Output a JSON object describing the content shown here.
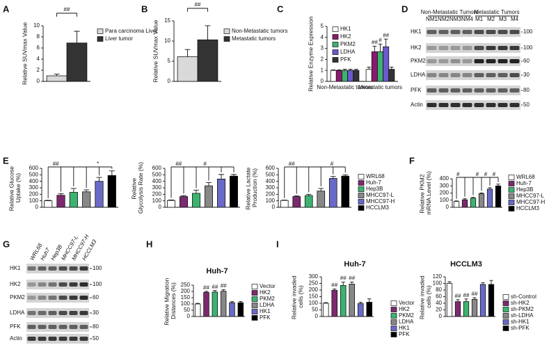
{
  "panel_labels": [
    "A",
    "B",
    "C",
    "D",
    "E",
    "F",
    "G",
    "H",
    "I"
  ],
  "chart_data": [
    {
      "type": "bar",
      "ylabel": "Relative SUVmax Value",
      "ylim": [
        0,
        10
      ],
      "yticks": [
        0,
        2,
        4,
        6,
        8,
        10
      ],
      "series": [
        {
          "name": "Para carcinoma Liver",
          "color": "#d9d9d9",
          "values": [
            1.0
          ],
          "errors": [
            0.3
          ]
        },
        {
          "name": "Liver tumor",
          "color": "#333333",
          "values": [
            6.9
          ],
          "errors": [
            2.1
          ]
        }
      ],
      "annotations": [
        "##"
      ]
    },
    {
      "type": "bar",
      "ylabel": "Relative SUVmax Value",
      "ylim": [
        0,
        15
      ],
      "yticks": [
        0,
        5,
        10,
        15
      ],
      "series": [
        {
          "name": "Non-Metastatic tumors",
          "color": "#d9d9d9",
          "values": [
            6.1
          ],
          "errors": [
            1.8
          ]
        },
        {
          "name": "Metastatic tumors",
          "color": "#333333",
          "values": [
            10.3
          ],
          "errors": [
            3.5
          ]
        }
      ],
      "annotations": [
        "##"
      ]
    },
    {
      "type": "bar",
      "ylabel": "Relative Enzyme Expression",
      "ylim": [
        0,
        5
      ],
      "yticks": [
        0,
        1,
        2,
        3,
        4,
        5
      ],
      "categories": [
        "Non-Metastatic tumors",
        "Metastatic tumors"
      ],
      "series": [
        {
          "name": "HK1",
          "color": "#ffffff",
          "values": [
            1.0,
            1.1
          ],
          "errors": [
            0.05,
            0.2
          ]
        },
        {
          "name": "HK2",
          "color": "#8b1a6b",
          "values": [
            1.0,
            2.7
          ],
          "errors": [
            0.05,
            0.5
          ]
        },
        {
          "name": "PKM2",
          "color": "#3cb371",
          "values": [
            1.0,
            2.7
          ],
          "errors": [
            0.1,
            0.7
          ]
        },
        {
          "name": "LDHA",
          "color": "#6a5acd",
          "values": [
            1.0,
            3.15
          ],
          "errors": [
            0.1,
            0.7
          ]
        },
        {
          "name": "PFK",
          "color": "#333333",
          "values": [
            1.0,
            1.1
          ],
          "errors": [
            0.1,
            0.2
          ]
        }
      ],
      "annotations": [
        "##",
        "#",
        "##"
      ]
    },
    {
      "type": "bar",
      "ylabel": "Relative Glucose Uptake (%)",
      "ylim": [
        0,
        600
      ],
      "yticks": [
        0,
        100,
        200,
        300,
        400,
        500,
        600
      ],
      "values": [
        100,
        185,
        230,
        238,
        400,
        490
      ],
      "errors": [
        8,
        25,
        60,
        30,
        60,
        70
      ],
      "colors": [
        "#ffffff",
        "#7b2a6f",
        "#3cb371",
        "#888888",
        "#6a6ac8",
        "#000000"
      ],
      "annotations": [
        "##",
        "*"
      ]
    },
    {
      "type": "bar",
      "ylabel": "Relative Glycolysis Rate (%)",
      "ylim": [
        0,
        600
      ],
      "yticks": [
        0,
        100,
        200,
        300,
        400,
        500,
        600
      ],
      "values": [
        105,
        165,
        215,
        330,
        435,
        480
      ],
      "errors": [
        8,
        15,
        50,
        50,
        70,
        25
      ],
      "colors": [
        "#ffffff",
        "#7b2a6f",
        "#3cb371",
        "#888888",
        "#6a6ac8",
        "#000000"
      ],
      "annotations": [
        "##",
        "#"
      ]
    },
    {
      "type": "bar",
      "ylabel": "Relative Lactate Production (%)",
      "ylim": [
        0,
        600
      ],
      "yticks": [
        0,
        100,
        200,
        300,
        400,
        500,
        600
      ],
      "values": [
        105,
        165,
        180,
        250,
        445,
        480
      ],
      "errors": [
        5,
        10,
        20,
        40,
        30,
        20
      ],
      "colors": [
        "#ffffff",
        "#7b2a6f",
        "#3cb371",
        "#888888",
        "#6a6ac8",
        "#000000"
      ],
      "legend": [
        "WRL68",
        "Huh-7",
        "Hep3B",
        "MHCC97-L",
        "MHCC97-H",
        "HCCLM3"
      ],
      "annotations": [
        "##",
        "#"
      ]
    },
    {
      "type": "bar",
      "ylabel": "Relative PKM2 mRNA Level (%)",
      "ylim": [
        0,
        400
      ],
      "yticks": [
        0,
        100,
        200,
        300,
        400
      ],
      "values": [
        82,
        105,
        128,
        190,
        255,
        300
      ],
      "errors": [
        8,
        15,
        12,
        12,
        20,
        25
      ],
      "colors": [
        "#ffffff",
        "#7b2a6f",
        "#3cb371",
        "#888888",
        "#6a6ac8",
        "#000000"
      ],
      "legend": [
        "WRL68",
        "Huh-7",
        "Hep3B",
        "MHCC97-L",
        "MHCC97-H",
        "HCCLM3"
      ],
      "annotations": [
        "#",
        "#",
        "#",
        "#"
      ]
    },
    {
      "type": "bar",
      "title": "Huh-7",
      "ylabel": "Relative Migration Distances (%)",
      "ylim": [
        0,
        250
      ],
      "yticks": [
        0,
        50,
        100,
        150,
        200,
        250
      ],
      "values": [
        100,
        193,
        195,
        202,
        110,
        110
      ],
      "errors": [
        5,
        8,
        12,
        12,
        8,
        10
      ],
      "colors": [
        "#ffffff",
        "#7b2a6f",
        "#3cb371",
        "#888888",
        "#6a6ac8",
        "#000000"
      ],
      "legend": [
        "Vector",
        "HK2",
        "PKM2",
        "LDHA",
        "HK1",
        "PFK"
      ],
      "annotations": [
        "##",
        "##",
        "##"
      ]
    },
    {
      "type": "bar",
      "title": "Huh-7",
      "ylabel": "Relative invaded cells (%)",
      "ylim": [
        0,
        300
      ],
      "yticks": [
        0,
        50,
        100,
        150,
        200,
        250,
        300
      ],
      "values": [
        100,
        198,
        235,
        245,
        98,
        108
      ],
      "errors": [
        5,
        10,
        25,
        15,
        10,
        25
      ],
      "colors": [
        "#ffffff",
        "#7b2a6f",
        "#3cb371",
        "#888888",
        "#6a6ac8",
        "#000000"
      ],
      "legend": [
        "Vector",
        "HK2",
        "PKM2",
        "LDHA",
        "HK1",
        "PFK"
      ],
      "annotations": [
        "##",
        "##",
        "##"
      ]
    },
    {
      "type": "bar",
      "title": "HCCLM3",
      "ylabel": "Relative invaded cells (%)",
      "ylim": [
        0,
        120
      ],
      "yticks": [
        0,
        20,
        40,
        60,
        80,
        100,
        120
      ],
      "values": [
        100,
        45,
        45,
        52,
        97,
        97
      ],
      "errors": [
        5,
        6,
        8,
        5,
        5,
        12
      ],
      "colors": [
        "#ffffff",
        "#7b2a6f",
        "#3cb371",
        "#888888",
        "#6a6ac8",
        "#000000"
      ],
      "legend": [
        "sh-Control",
        "sh-HK2",
        "sh-PKM2",
        "sh-LDHA",
        "sh-HK1",
        "sh-PFK"
      ],
      "annotations": [
        "##",
        "##",
        "##"
      ]
    }
  ],
  "blots": [
    {
      "groups": [
        "Non-Metastatic Tumors",
        "Metastatic Tumors"
      ],
      "lanes": [
        "NM1",
        "NM2",
        "NM3",
        "NM4",
        "M1",
        "M2",
        "M3",
        "M4"
      ],
      "rows": [
        "HK1",
        "HK2",
        "PKM2",
        "LDHA",
        "PFK",
        "Actin"
      ],
      "markers": [
        100,
        100,
        60,
        30,
        80,
        50
      ]
    },
    {
      "lanes": [
        "WRL68",
        "Huh7",
        "Hep3B",
        "MHCC97-L",
        "MHCC97-H",
        "HCCLM3"
      ],
      "rows": [
        "HK1",
        "HK2",
        "PKM2",
        "LDHA",
        "PFK",
        "Actin"
      ],
      "markers": [
        100,
        100,
        60,
        30,
        80,
        50
      ]
    }
  ]
}
